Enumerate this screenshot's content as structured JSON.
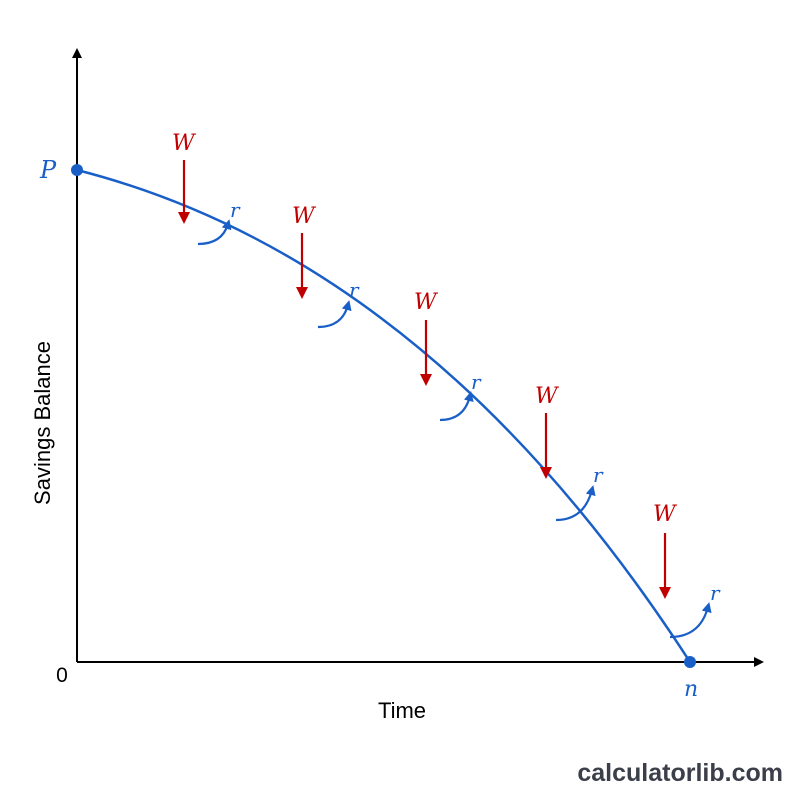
{
  "diagram": {
    "y_axis_label": "Savings Balance",
    "x_axis_label": "Time",
    "origin_label": "0",
    "start_label": "P",
    "end_label": "n",
    "withdrawal_label": "W",
    "rate_label": "r",
    "withdrawal_count": 5,
    "colors": {
      "axis": "#000000",
      "curve": "#1a5fc7",
      "withdrawal": "#c00000",
      "point": "#1a5fc7"
    }
  },
  "watermark": "calculatorlib.com"
}
